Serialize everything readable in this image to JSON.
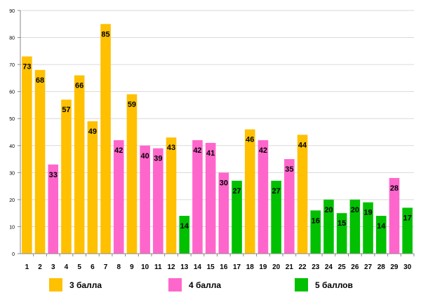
{
  "chart_data": {
    "type": "bar",
    "title": "",
    "xlabel": "",
    "ylabel": "",
    "ylim": [
      0,
      90
    ],
    "yticks": [
      0,
      10,
      20,
      30,
      40,
      50,
      60,
      70,
      80,
      90
    ],
    "grid": true,
    "categories": [
      "1",
      "2",
      "3",
      "4",
      "5",
      "6",
      "7",
      "8",
      "9",
      "10",
      "11",
      "12",
      "13",
      "14",
      "15",
      "16",
      "17",
      "18",
      "19",
      "20",
      "21",
      "22",
      "23",
      "24",
      "25",
      "26",
      "27",
      "28",
      "29",
      "30"
    ],
    "values": [
      73,
      68,
      33,
      57,
      66,
      49,
      85,
      42,
      59,
      40,
      39,
      43,
      14,
      42,
      41,
      30,
      27,
      46,
      42,
      27,
      35,
      44,
      16,
      20,
      15,
      20,
      19,
      14,
      28,
      17
    ],
    "groups": [
      "g3",
      "g3",
      "g4",
      "g3",
      "g3",
      "g3",
      "g3",
      "g4",
      "g3",
      "g4",
      "g4",
      "g3",
      "g5",
      "g4",
      "g4",
      "g4",
      "g5",
      "g3",
      "g4",
      "g5",
      "g4",
      "g3",
      "g5",
      "g5",
      "g5",
      "g5",
      "g5",
      "g5",
      "g4",
      "g5"
    ],
    "legend": [
      {
        "key": "g3",
        "label": "3 балла",
        "color": "#FFC000"
      },
      {
        "key": "g4",
        "label": "4 балла",
        "color": "#FF66CC"
      },
      {
        "key": "g5",
        "label": "5 баллов",
        "color": "#00C000"
      }
    ]
  }
}
